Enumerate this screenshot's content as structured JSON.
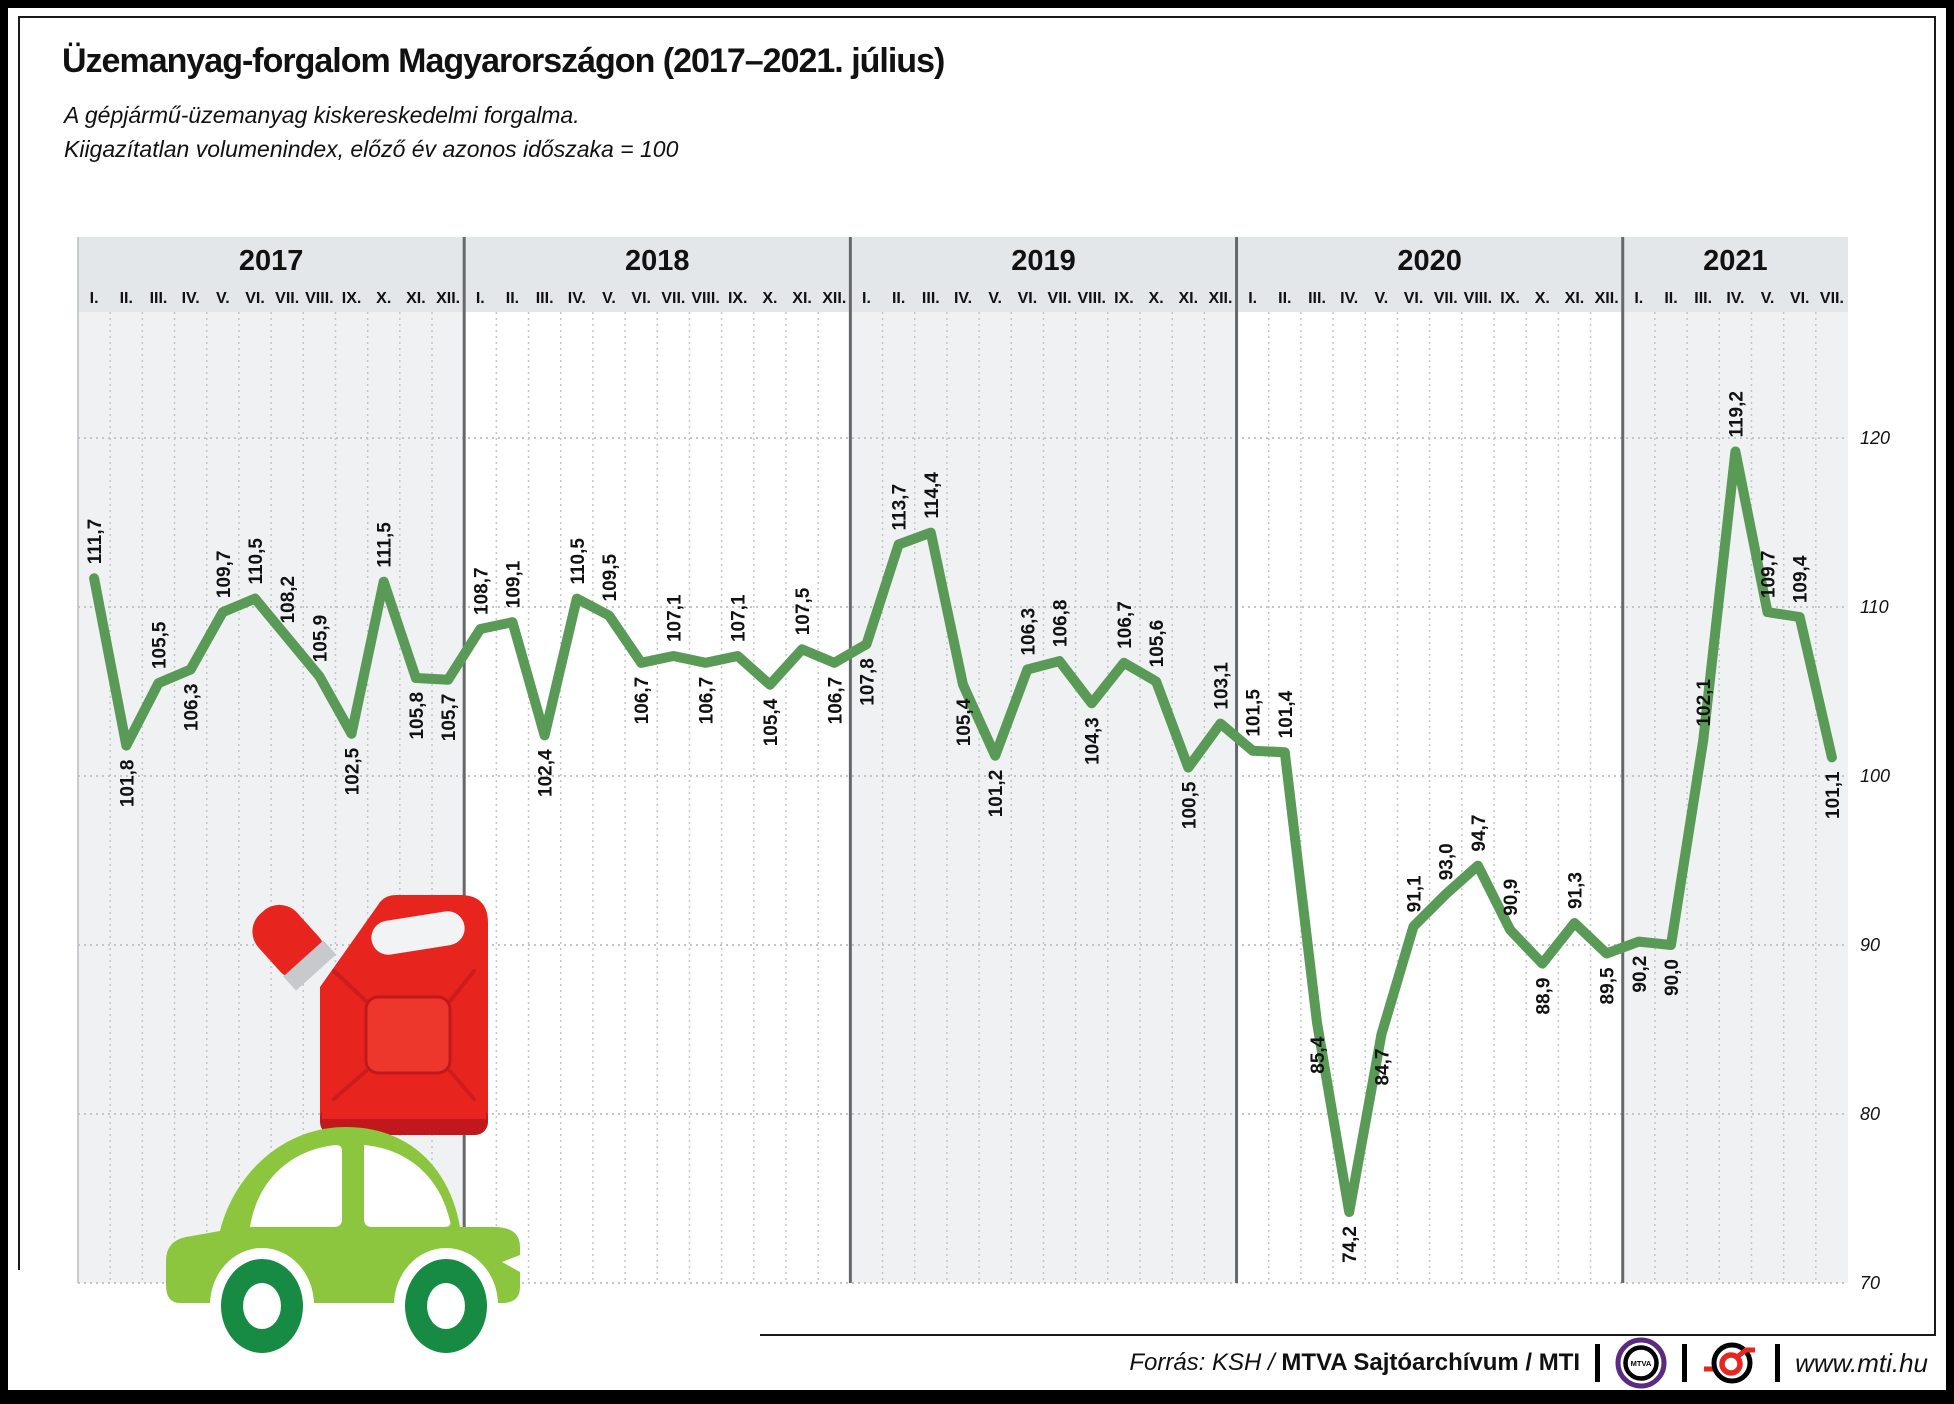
{
  "header": {
    "title": "Üzemanyag-forgalom Magyarországon (2017–2021. július)",
    "subtitle_line1": "A gépjármű-üzemanyag kiskereskedelmi forgalma.",
    "subtitle_line2": "Kiigazítatlan volumenindex, előző év azonos időszaka = 100"
  },
  "chart_data": {
    "type": "line",
    "title": "Üzemanyag-forgalom Magyarországon (2017–2021. július)",
    "ylabel": "volumenindex, előző év azonos időszaka = 100",
    "ylim": [
      70,
      127
    ],
    "yticks": [
      70,
      80,
      90,
      100,
      110,
      120
    ],
    "grid": true,
    "legend_position": "none",
    "years": [
      {
        "label": "2017",
        "months": [
          "I.",
          "II.",
          "III.",
          "IV.",
          "V.",
          "VI.",
          "VII.",
          "VIII.",
          "IX.",
          "X.",
          "XI.",
          "XII."
        ],
        "values": [
          111.7,
          101.8,
          105.5,
          106.3,
          109.7,
          110.5,
          108.2,
          105.9,
          102.5,
          111.5,
          105.8,
          105.7
        ],
        "label_sides": [
          "above",
          "below",
          "above",
          "below",
          "above",
          "above",
          "above",
          "above",
          "below",
          "above",
          "below",
          "below"
        ]
      },
      {
        "label": "2018",
        "months": [
          "I.",
          "II.",
          "III.",
          "IV.",
          "V.",
          "VI.",
          "VII.",
          "VIII.",
          "IX.",
          "X.",
          "XI.",
          "XII."
        ],
        "values": [
          108.7,
          109.1,
          102.4,
          110.5,
          109.5,
          106.7,
          107.1,
          106.7,
          107.1,
          105.4,
          107.5,
          106.7
        ],
        "label_sides": [
          "above",
          "above",
          "below",
          "above",
          "above",
          "below",
          "above",
          "below",
          "above",
          "below",
          "above",
          "below"
        ]
      },
      {
        "label": "2019",
        "months": [
          "I.",
          "II.",
          "III.",
          "IV.",
          "V.",
          "VI.",
          "VII.",
          "VIII.",
          "IX.",
          "X.",
          "XI.",
          "XII."
        ],
        "values": [
          107.8,
          113.7,
          114.4,
          105.4,
          101.2,
          106.3,
          106.8,
          104.3,
          106.7,
          105.6,
          100.5,
          103.1
        ],
        "label_sides": [
          "below",
          "above",
          "above",
          "below",
          "below",
          "above",
          "above",
          "below",
          "above",
          "above",
          "below",
          "above"
        ]
      },
      {
        "label": "2020",
        "months": [
          "I.",
          "II.",
          "III.",
          "IV.",
          "V.",
          "VI.",
          "VII.",
          "VIII.",
          "IX.",
          "X.",
          "XI.",
          "XII."
        ],
        "values": [
          101.5,
          101.4,
          85.4,
          74.2,
          84.7,
          91.1,
          93.0,
          94.7,
          90.9,
          88.9,
          91.3,
          89.5
        ],
        "label_sides": [
          "above",
          "above",
          "below",
          "below",
          "below",
          "above",
          "above",
          "above",
          "above",
          "below",
          "above",
          "below"
        ]
      },
      {
        "label": "2021",
        "months": [
          "I.",
          "II.",
          "III.",
          "IV.",
          "V.",
          "VI.",
          "VII."
        ],
        "values": [
          90.2,
          90.0,
          102.1,
          119.2,
          109.7,
          109.4,
          101.1
        ],
        "label_sides": [
          "below",
          "below",
          "above",
          "above",
          "above",
          "above",
          "below"
        ]
      }
    ]
  },
  "footer": {
    "source_italic": "Forrás: KSH / ",
    "source_bold": "MTVA Sajtóarchívum",
    "source_tail": " / MTI",
    "mtva_text": "MTVA",
    "website": "www.mti.hu"
  },
  "colors": {
    "line": "#5a9a57",
    "band_gray": "#eff1f2",
    "band_white": "#ffffff",
    "header_band": "#e4e7ea",
    "separator": "#66696c",
    "grid_dot": "#c3c6c9",
    "text": "#111111",
    "can_red": "#e8241f",
    "can_red_dark": "#c0181c",
    "can_panel": "#ee372c",
    "spout_gray": "#c6cacd",
    "car_green": "#8cc63f",
    "wheel_green": "#178a44",
    "mtva_purple": "#5b2b81",
    "mti_red": "#e8251f"
  }
}
